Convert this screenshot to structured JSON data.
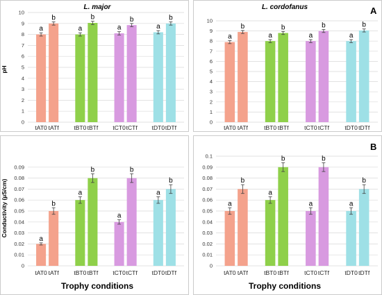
{
  "labels": {
    "panel_a_letter": "A",
    "panel_b_letter": "B",
    "title_left": "L. major",
    "title_right": "L. cordofanus",
    "ylabel_ph": "pH",
    "ylabel_cond": "Conductivity (µS/cm)",
    "xlabel": "Trophy conditions"
  },
  "colors": {
    "A": "#f4a28c",
    "B": "#8fd04a",
    "C": "#d89ae0",
    "D": "#9ee0e6"
  },
  "chart_data": [
    {
      "id": "ph-major",
      "type": "bar",
      "title": "L. major",
      "ylabel": "pH",
      "xlabel": "",
      "ylim": [
        0,
        10
      ],
      "yticks": [
        0,
        1,
        2,
        3,
        4,
        5,
        6,
        7,
        8,
        9,
        10
      ],
      "grid": true,
      "groups": [
        {
          "color": "A",
          "bars": [
            {
              "label": "tAT0",
              "value": 8.0,
              "err": 0.15,
              "sig": "a"
            },
            {
              "label": "tATf",
              "value": 9.0,
              "err": 0.15,
              "sig": "b"
            }
          ]
        },
        {
          "color": "B",
          "bars": [
            {
              "label": "tBT0",
              "value": 8.0,
              "err": 0.15,
              "sig": "a"
            },
            {
              "label": "tBTf",
              "value": 9.05,
              "err": 0.15,
              "sig": "b"
            }
          ]
        },
        {
          "color": "C",
          "bars": [
            {
              "label": "tCT0",
              "value": 8.1,
              "err": 0.15,
              "sig": "a"
            },
            {
              "label": "tCTf",
              "value": 8.85,
              "err": 0.15,
              "sig": "b"
            }
          ]
        },
        {
          "color": "D",
          "bars": [
            {
              "label": "tDT0",
              "value": 8.2,
              "err": 0.15,
              "sig": "a"
            },
            {
              "label": "tDTf",
              "value": 9.0,
              "err": 0.15,
              "sig": "b"
            }
          ]
        }
      ]
    },
    {
      "id": "ph-cordofanus",
      "type": "bar",
      "title": "L. cordofanus",
      "ylabel": "",
      "xlabel": "",
      "ylim": [
        0,
        10
      ],
      "yticks": [
        0,
        1,
        2,
        3,
        4,
        5,
        6,
        7,
        8,
        9,
        10
      ],
      "grid": true,
      "groups": [
        {
          "color": "A",
          "bars": [
            {
              "label": "tAT0",
              "value": 7.9,
              "err": 0.15,
              "sig": "a"
            },
            {
              "label": "tATf",
              "value": 8.9,
              "err": 0.15,
              "sig": "b"
            }
          ]
        },
        {
          "color": "B",
          "bars": [
            {
              "label": "tBT0",
              "value": 8.0,
              "err": 0.15,
              "sig": "a"
            },
            {
              "label": "tBTf",
              "value": 8.8,
              "err": 0.15,
              "sig": "b"
            }
          ]
        },
        {
          "color": "C",
          "bars": [
            {
              "label": "tCT0",
              "value": 8.0,
              "err": 0.15,
              "sig": "a"
            },
            {
              "label": "tCTf",
              "value": 9.0,
              "err": 0.15,
              "sig": "b"
            }
          ]
        },
        {
          "color": "D",
          "bars": [
            {
              "label": "tDT0",
              "value": 8.0,
              "err": 0.15,
              "sig": "a"
            },
            {
              "label": "tDTf",
              "value": 9.05,
              "err": 0.15,
              "sig": "b"
            }
          ]
        }
      ]
    },
    {
      "id": "cond-major",
      "type": "bar",
      "title": "",
      "ylabel": "Conductivity (µS/cm)",
      "xlabel": "Trophy conditions",
      "ylim": [
        0,
        0.1
      ],
      "yticks": [
        0,
        0.01,
        0.02,
        0.03,
        0.04,
        0.05,
        0.06,
        0.07,
        0.08,
        0.09
      ],
      "grid": true,
      "groups": [
        {
          "color": "A",
          "bars": [
            {
              "label": "tAT0",
              "value": 0.02,
              "err": 0.001,
              "sig": "a"
            },
            {
              "label": "tATf",
              "value": 0.05,
              "err": 0.003,
              "sig": "b"
            }
          ]
        },
        {
          "color": "B",
          "bars": [
            {
              "label": "tBT0",
              "value": 0.06,
              "err": 0.003,
              "sig": "a"
            },
            {
              "label": "tBTf",
              "value": 0.08,
              "err": 0.004,
              "sig": "b"
            }
          ]
        },
        {
          "color": "C",
          "bars": [
            {
              "label": "tCT0",
              "value": 0.04,
              "err": 0.002,
              "sig": "a"
            },
            {
              "label": "tCTf",
              "value": 0.08,
              "err": 0.004,
              "sig": "b"
            }
          ]
        },
        {
          "color": "D",
          "bars": [
            {
              "label": "tDT0",
              "value": 0.06,
              "err": 0.003,
              "sig": "a"
            },
            {
              "label": "tDTf",
              "value": 0.07,
              "err": 0.004,
              "sig": "b"
            }
          ]
        }
      ]
    },
    {
      "id": "cond-cordofanus",
      "type": "bar",
      "title": "",
      "ylabel": "",
      "xlabel": "Trophy conditions",
      "ylim": [
        0,
        0.1
      ],
      "yticks": [
        0,
        0.01,
        0.02,
        0.03,
        0.04,
        0.05,
        0.06,
        0.07,
        0.08,
        0.09,
        0.1
      ],
      "grid": true,
      "groups": [
        {
          "color": "A",
          "bars": [
            {
              "label": "tAT0",
              "value": 0.05,
              "err": 0.003,
              "sig": "a"
            },
            {
              "label": "tATf",
              "value": 0.07,
              "err": 0.004,
              "sig": "b"
            }
          ]
        },
        {
          "color": "B",
          "bars": [
            {
              "label": "tBT0",
              "value": 0.06,
              "err": 0.003,
              "sig": "a"
            },
            {
              "label": "tBTf",
              "value": 0.09,
              "err": 0.004,
              "sig": "b"
            }
          ]
        },
        {
          "color": "C",
          "bars": [
            {
              "label": "tCT0",
              "value": 0.05,
              "err": 0.003,
              "sig": "a"
            },
            {
              "label": "tCTf",
              "value": 0.09,
              "err": 0.004,
              "sig": "b"
            }
          ]
        },
        {
          "color": "D",
          "bars": [
            {
              "label": "tDT0",
              "value": 0.05,
              "err": 0.003,
              "sig": "a"
            },
            {
              "label": "tDTf",
              "value": 0.07,
              "err": 0.004,
              "sig": "b"
            }
          ]
        }
      ]
    }
  ]
}
